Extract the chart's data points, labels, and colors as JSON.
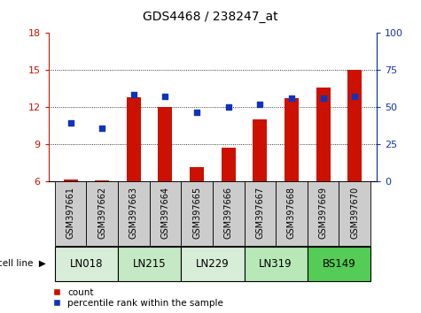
{
  "title": "GDS4468 / 238247_at",
  "samples": [
    "GSM397661",
    "GSM397662",
    "GSM397663",
    "GSM397664",
    "GSM397665",
    "GSM397666",
    "GSM397667",
    "GSM397668",
    "GSM397669",
    "GSM397670"
  ],
  "cell_lines": [
    {
      "name": "LN018",
      "samples_idx": [
        0,
        1
      ],
      "color": "#d8edd8"
    },
    {
      "name": "LN215",
      "samples_idx": [
        2,
        3
      ],
      "color": "#c5e8c5"
    },
    {
      "name": "LN229",
      "samples_idx": [
        4,
        5
      ],
      "color": "#d8edd8"
    },
    {
      "name": "LN319",
      "samples_idx": [
        6,
        7
      ],
      "color": "#b8e8b8"
    },
    {
      "name": "BS149",
      "samples_idx": [
        8,
        9
      ],
      "color": "#55cc55"
    }
  ],
  "count_values": [
    6.15,
    6.1,
    12.8,
    12.0,
    7.2,
    8.7,
    11.0,
    12.75,
    13.6,
    15.0
  ],
  "percentile_values_left_scale": [
    10.7,
    10.3,
    13.0,
    12.9,
    11.6,
    12.0,
    12.2,
    12.75,
    12.75,
    12.9
  ],
  "ylim_left": [
    6,
    18
  ],
  "ylim_right": [
    0,
    100
  ],
  "yticks_left": [
    6,
    9,
    12,
    15,
    18
  ],
  "yticks_right": [
    0,
    25,
    50,
    75,
    100
  ],
  "bar_color": "#cc1100",
  "dot_color": "#1133bb",
  "bar_bottom": 6.0,
  "right_axis_label_color": "#1133bb",
  "left_axis_label_color": "#cc1100",
  "grid_yticks": [
    9,
    12,
    15
  ],
  "title_fontsize": 10,
  "tick_label_fontsize": 7,
  "cell_line_fontsize": 8.5,
  "legend_fontsize": 7.5,
  "sample_box_color": "#cccccc"
}
